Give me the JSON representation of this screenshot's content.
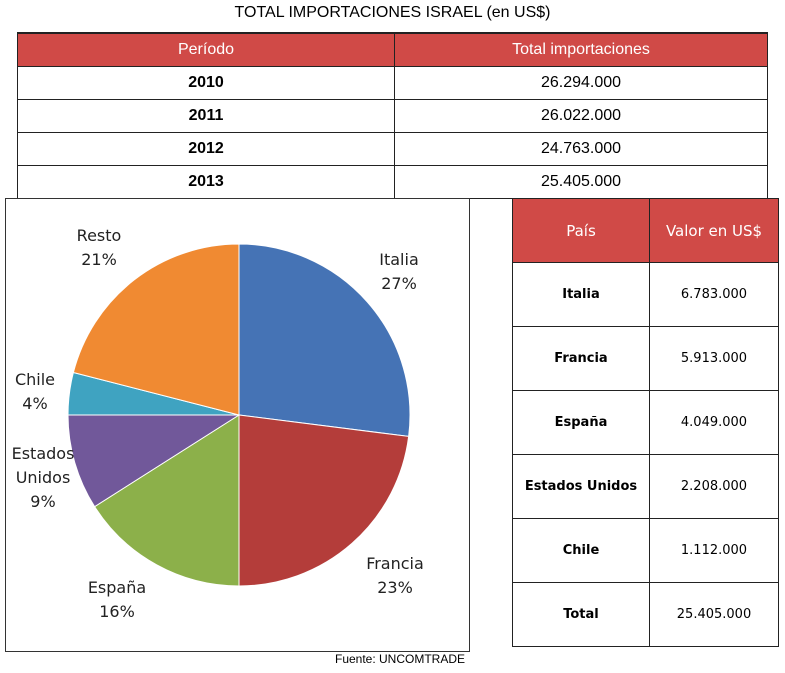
{
  "title": "TOTAL IMPORTACIONES ISRAEL (en US$)",
  "yearly_table": {
    "headers": [
      "Período",
      "Total importaciones"
    ],
    "rows": [
      [
        "2010",
        "26.294.000"
      ],
      [
        "2011",
        "26.022.000"
      ],
      [
        "2012",
        "24.763.000"
      ],
      [
        "2013",
        "25.405.000"
      ]
    ]
  },
  "country_table": {
    "headers": [
      "País",
      "Valor en US$"
    ],
    "rows": [
      [
        "Italia",
        "6.783.000"
      ],
      [
        "Francia",
        "5.913.000"
      ],
      [
        "España",
        "4.049.000"
      ],
      [
        "Estados Unidos",
        "2.208.000"
      ],
      [
        "Chile",
        "1.112.000"
      ],
      [
        "Total",
        "25.405.000"
      ]
    ]
  },
  "source": "Fuente: UNCOMTRADE",
  "chart_data": {
    "type": "pie",
    "title": "",
    "slices": [
      {
        "name": "Italia",
        "value": 27,
        "label": "27%",
        "color": "#4573b5"
      },
      {
        "name": "Francia",
        "value": 23,
        "label": "23%",
        "color": "#b43d3a"
      },
      {
        "name": "España",
        "value": 16,
        "label": "16%",
        "color": "#8cb04a"
      },
      {
        "name": "Estados Unidos",
        "value": 9,
        "label": "9%",
        "color": "#71589a"
      },
      {
        "name": "Chile",
        "value": 4,
        "label": "4%",
        "color": "#3fa3c1"
      },
      {
        "name": "Resto",
        "value": 21,
        "label": "21%",
        "color": "#f08a32"
      }
    ]
  }
}
